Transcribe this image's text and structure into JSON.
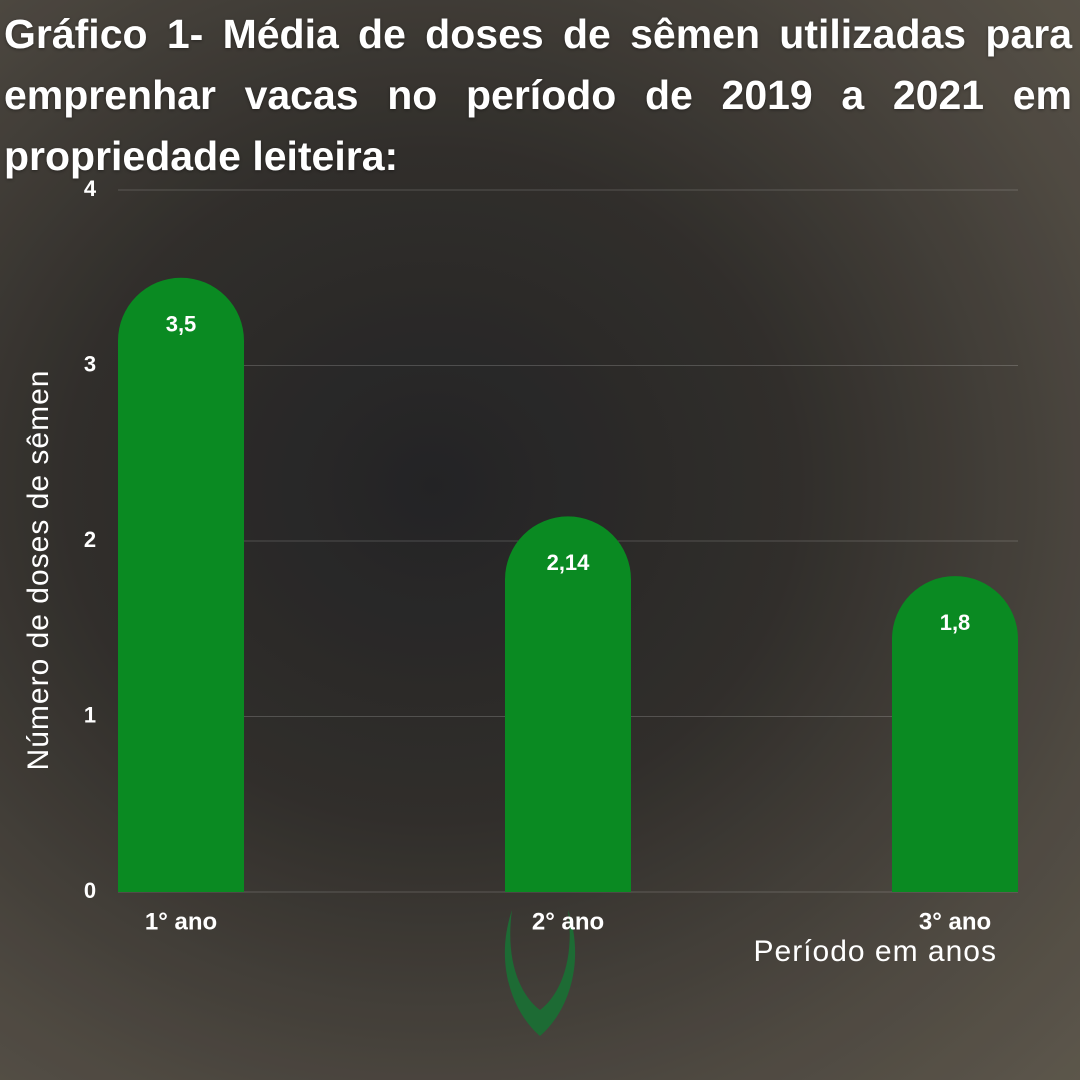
{
  "chart_data": {
    "type": "bar",
    "title": "Gráfico 1- Média de doses de sêmen utilizadas para emprenhar vacas no período de 2019 a 2021 em propriedade leiteira:",
    "y_label": "Número de doses de sêmen",
    "x_label": "Período em anos",
    "categories": [
      "1° ano",
      "2° ano",
      "3° ano"
    ],
    "values": [
      3.5,
      2.14,
      1.8
    ],
    "value_labels": [
      "3,5",
      "2,14",
      "1,8"
    ],
    "color": "#0a8a22",
    "ylim": [
      0,
      4
    ],
    "yticks": [
      0,
      1,
      2,
      3,
      4
    ],
    "grid": true
  }
}
